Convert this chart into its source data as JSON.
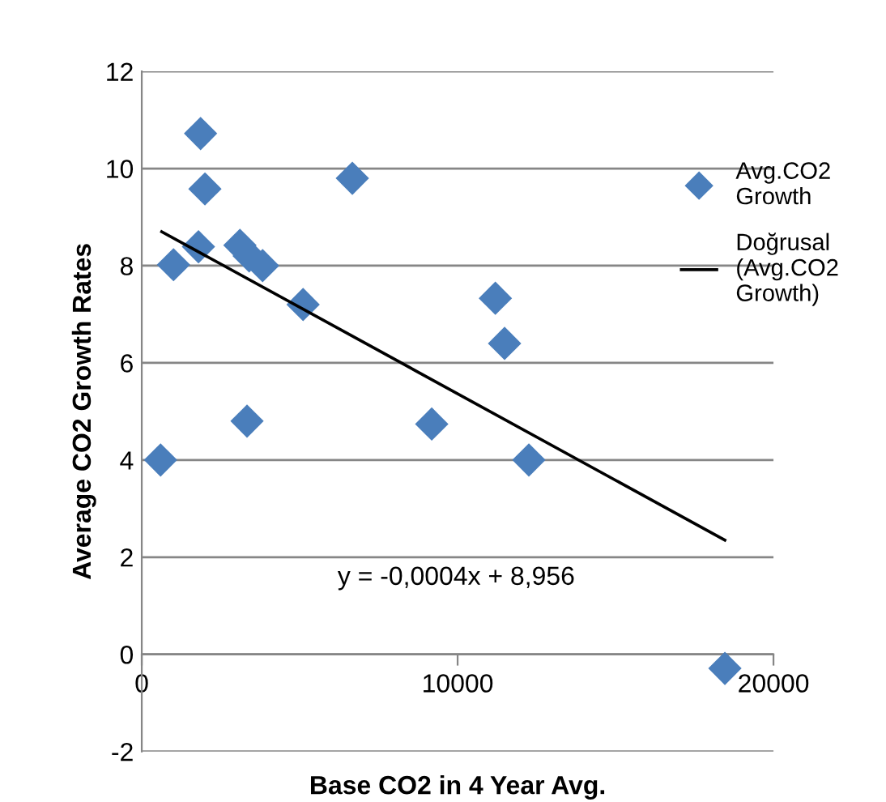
{
  "chart_data": {
    "type": "scatter",
    "xlabel": "Base CO2 in 4 Year Avg.",
    "ylabel": "Average CO2 Growth Rates",
    "xlim": [
      0,
      20000
    ],
    "xticks": [
      0,
      10000,
      20000
    ],
    "ylim": [
      -2,
      12
    ],
    "yticks": [
      -2,
      0,
      2,
      4,
      6,
      8,
      10,
      12
    ],
    "grid": "y",
    "legend": "right",
    "series": [
      {
        "name": "Avg.CO2 Growth",
        "type": "scatter",
        "marker": "diamond",
        "color": "#4a7ebb",
        "x": [
          595,
          1005,
          1862,
          2000,
          1795,
          3108,
          3400,
          3826,
          3333,
          5108,
          6667,
          11195,
          11487,
          9180,
          12256,
          18462
        ],
        "values": [
          4.0,
          8.02,
          10.72,
          9.58,
          8.39,
          8.42,
          8.2,
          8.0,
          4.8,
          7.2,
          9.8,
          7.33,
          6.4,
          4.74,
          4.0,
          -0.29
        ]
      },
      {
        "name": "Doğrusal (Avg.CO2 Growth)",
        "type": "line",
        "marker": "none",
        "line_style": "solid",
        "color": "#000000",
        "x": [
          631,
          18462
        ],
        "values": [
          8.7,
          2.35
        ]
      }
    ],
    "annotations": [
      "y = -0,0004x + 8,956"
    ]
  }
}
